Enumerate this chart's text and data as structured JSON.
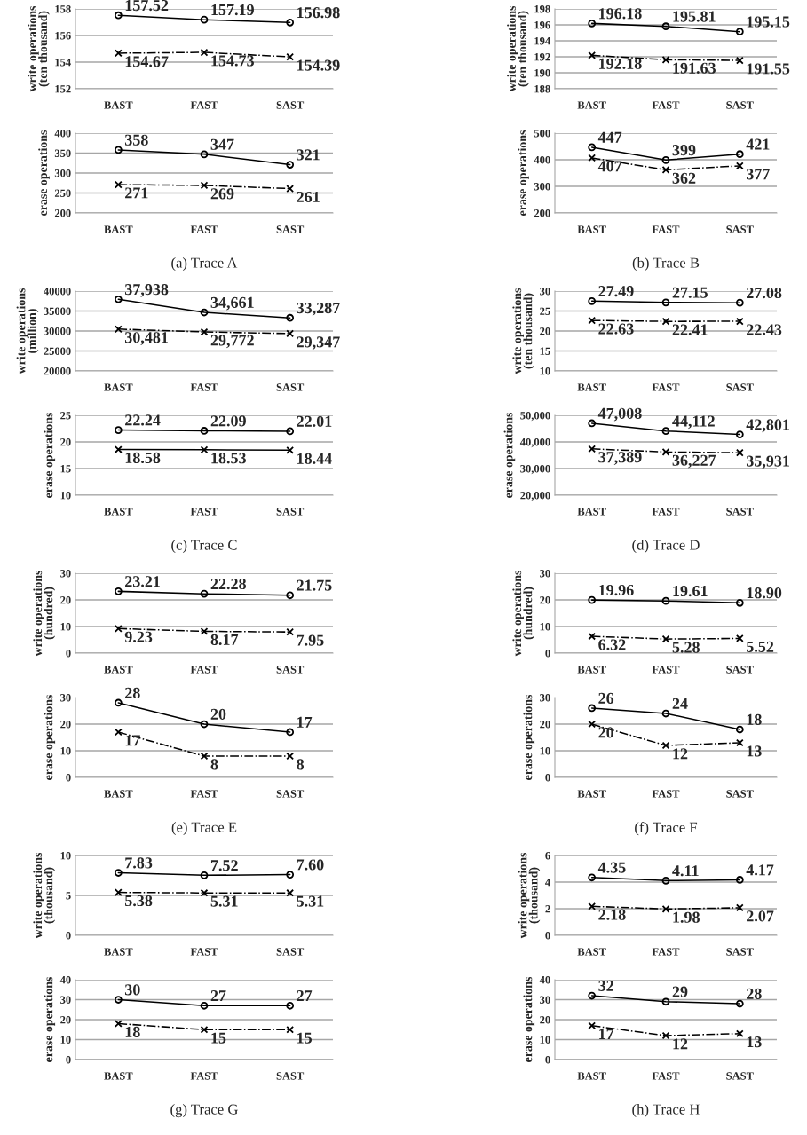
{
  "chart_data": [
    {
      "type": "line",
      "categories": [
        "BAST",
        "FAST",
        "SAST"
      ],
      "ylabel": "write operations\n(ten thousand)",
      "ylim": [
        152,
        158
      ],
      "yticks": [
        152,
        154,
        156,
        158
      ],
      "grid": "y",
      "series": [
        {
          "color": "#000000",
          "marker": "circle",
          "line_style": "solid",
          "values": [
            157.52,
            157.19,
            156.98
          ],
          "value_labels": [
            "157.52",
            "157.19",
            "156.98"
          ]
        },
        {
          "color": "#000000",
          "marker": "cross",
          "line_style": "dashdot",
          "values": [
            154.67,
            154.73,
            154.39
          ],
          "value_labels": [
            "154.67",
            "154.73",
            "154.39"
          ]
        }
      ]
    },
    {
      "type": "line",
      "categories": [
        "BAST",
        "FAST",
        "SAST"
      ],
      "ylabel": "erase operations",
      "ylim": [
        200,
        400
      ],
      "yticks": [
        200,
        250,
        300,
        350,
        400
      ],
      "grid": "y",
      "annotations": [
        "(a) Trace A"
      ],
      "series": [
        {
          "color": "#000000",
          "marker": "circle",
          "line_style": "solid",
          "values": [
            358,
            347,
            321
          ],
          "value_labels": [
            "358",
            "347",
            "321"
          ]
        },
        {
          "color": "#000000",
          "marker": "cross",
          "line_style": "dashdot",
          "values": [
            271,
            269,
            261
          ],
          "value_labels": [
            "271",
            "269",
            "261"
          ]
        }
      ]
    },
    {
      "type": "line",
      "categories": [
        "BAST",
        "FAST",
        "SAST"
      ],
      "ylabel": "write operations\n(ten thousand)",
      "ylim": [
        188,
        198
      ],
      "yticks": [
        188,
        190,
        192,
        194,
        196,
        198
      ],
      "grid": "y",
      "series": [
        {
          "color": "#000000",
          "marker": "circle",
          "line_style": "solid",
          "values": [
            196.18,
            195.81,
            195.15
          ],
          "value_labels": [
            "196.18",
            "195.81",
            "195.15"
          ]
        },
        {
          "color": "#000000",
          "marker": "cross",
          "line_style": "dashdot",
          "values": [
            192.18,
            191.63,
            191.55
          ],
          "value_labels": [
            "192.18",
            "191.63",
            "191.55"
          ]
        }
      ]
    },
    {
      "type": "line",
      "categories": [
        "BAST",
        "FAST",
        "SAST"
      ],
      "ylabel": "erase operations",
      "ylim": [
        200,
        500
      ],
      "yticks": [
        200,
        300,
        400,
        500
      ],
      "grid": "y",
      "annotations": [
        "(b) Trace B"
      ],
      "series": [
        {
          "color": "#000000",
          "marker": "circle",
          "line_style": "solid",
          "values": [
            447,
            399,
            421
          ],
          "value_labels": [
            "447",
            "399",
            "421"
          ]
        },
        {
          "color": "#000000",
          "marker": "cross",
          "line_style": "dashdot",
          "values": [
            407,
            362,
            377
          ],
          "value_labels": [
            "407",
            "362",
            "377"
          ]
        }
      ]
    },
    {
      "type": "line",
      "categories": [
        "BAST",
        "FAST",
        "SAST"
      ],
      "ylabel": "write operations\n(million)",
      "ylim": [
        20000,
        40000
      ],
      "yticks": [
        20000,
        25000,
        30000,
        35000,
        40000
      ],
      "grid": "y",
      "series": [
        {
          "color": "#000000",
          "marker": "circle",
          "line_style": "solid",
          "values": [
            37938,
            34661,
            33287
          ],
          "value_labels": [
            "37,938",
            "34,661",
            "33,287"
          ]
        },
        {
          "color": "#000000",
          "marker": "cross",
          "line_style": "dashdot",
          "values": [
            30481,
            29772,
            29347
          ],
          "value_labels": [
            "30,481",
            "29,772",
            "29,347"
          ]
        }
      ]
    },
    {
      "type": "line",
      "categories": [
        "BAST",
        "FAST",
        "SAST"
      ],
      "ylabel": "erase operations",
      "ylim": [
        10,
        25
      ],
      "yticks": [
        10,
        15,
        20,
        25
      ],
      "grid": "y",
      "annotations": [
        "(c) Trace C"
      ],
      "series": [
        {
          "color": "#000000",
          "marker": "circle",
          "line_style": "solid",
          "values": [
            22.24,
            22.09,
            22.01
          ],
          "value_labels": [
            "22.24",
            "22.09",
            "22.01"
          ]
        },
        {
          "color": "#000000",
          "marker": "cross",
          "line_style": "solid",
          "values": [
            18.58,
            18.53,
            18.44
          ],
          "value_labels": [
            "18.58",
            "18.53",
            "18.44"
          ]
        }
      ]
    },
    {
      "type": "line",
      "categories": [
        "BAST",
        "FAST",
        "SAST"
      ],
      "ylabel": "write operations\n(ten thousand)",
      "ylim": [
        10,
        30
      ],
      "yticks": [
        10,
        15,
        20,
        25,
        30
      ],
      "grid": "y",
      "series": [
        {
          "color": "#000000",
          "marker": "circle",
          "line_style": "solid",
          "values": [
            27.49,
            27.15,
            27.08
          ],
          "value_labels": [
            "27.49",
            "27.15",
            "27.08"
          ]
        },
        {
          "color": "#000000",
          "marker": "cross",
          "line_style": "dashdot",
          "values": [
            22.63,
            22.41,
            22.43
          ],
          "value_labels": [
            "22.63",
            "22.41",
            "22.43"
          ]
        }
      ]
    },
    {
      "type": "line",
      "categories": [
        "BAST",
        "FAST",
        "SAST"
      ],
      "ylabel": "erase operations",
      "ylim": [
        20000,
        50000
      ],
      "yticks": [
        {
          "value": 20000,
          "label": "20,000"
        },
        {
          "value": 30000,
          "label": "30,000"
        },
        {
          "value": 40000,
          "label": "40,000"
        },
        {
          "value": 50000,
          "label": "50,000"
        }
      ],
      "grid": "y",
      "annotations": [
        "(d) Trace D"
      ],
      "series": [
        {
          "color": "#000000",
          "marker": "circle",
          "line_style": "solid",
          "values": [
            47008,
            44112,
            42801
          ],
          "value_labels": [
            "47,008",
            "44,112",
            "42,801"
          ]
        },
        {
          "color": "#000000",
          "marker": "cross",
          "line_style": "dashdot",
          "values": [
            37389,
            36227,
            35931
          ],
          "value_labels": [
            "37,389",
            "36,227",
            "35,931"
          ]
        }
      ]
    },
    {
      "type": "line",
      "categories": [
        "BAST",
        "FAST",
        "SAST"
      ],
      "ylabel": "write operations\n(hundred)",
      "ylim": [
        0,
        30
      ],
      "yticks": [
        0,
        10,
        20,
        30
      ],
      "grid": "y",
      "series": [
        {
          "color": "#000000",
          "marker": "circle",
          "line_style": "solid",
          "values": [
            23.21,
            22.28,
            21.75
          ],
          "value_labels": [
            "23.21",
            "22.28",
            "21.75"
          ]
        },
        {
          "color": "#000000",
          "marker": "cross",
          "line_style": "dashdot",
          "values": [
            9.23,
            8.17,
            7.95
          ],
          "value_labels": [
            "9.23",
            "8.17",
            "7.95"
          ]
        }
      ]
    },
    {
      "type": "line",
      "categories": [
        "BAST",
        "FAST",
        "SAST"
      ],
      "ylabel": "erase operations",
      "ylim": [
        0,
        30
      ],
      "yticks": [
        0,
        10,
        20,
        30
      ],
      "grid": "y",
      "annotations": [
        "(e) Trace E"
      ],
      "series": [
        {
          "color": "#000000",
          "marker": "circle",
          "line_style": "solid",
          "values": [
            28,
            20,
            17
          ],
          "value_labels": [
            "28",
            "20",
            "17"
          ]
        },
        {
          "color": "#000000",
          "marker": "cross",
          "line_style": "dashdot",
          "values": [
            17,
            8,
            8
          ],
          "value_labels": [
            "17",
            "8",
            "8"
          ]
        }
      ]
    },
    {
      "type": "line",
      "categories": [
        "BAST",
        "FAST",
        "SAST"
      ],
      "ylabel": "write operations\n(hundred)",
      "ylim": [
        0,
        30
      ],
      "yticks": [
        0,
        10,
        20,
        30
      ],
      "grid": "y",
      "series": [
        {
          "color": "#000000",
          "marker": "circle",
          "line_style": "solid",
          "values": [
            19.96,
            19.61,
            18.9
          ],
          "value_labels": [
            "19.96",
            "19.61",
            "18.90"
          ]
        },
        {
          "color": "#000000",
          "marker": "cross",
          "line_style": "dashdot",
          "values": [
            6.32,
            5.28,
            5.52
          ],
          "value_labels": [
            "6.32",
            "5.28",
            "5.52"
          ]
        }
      ]
    },
    {
      "type": "line",
      "categories": [
        "BAST",
        "FAST",
        "SAST"
      ],
      "ylabel": "erase operations",
      "ylim": [
        0,
        30
      ],
      "yticks": [
        0,
        10,
        20,
        30
      ],
      "grid": "y",
      "annotations": [
        "(f) Trace F"
      ],
      "series": [
        {
          "color": "#000000",
          "marker": "circle",
          "line_style": "solid",
          "values": [
            26,
            24,
            18
          ],
          "value_labels": [
            "26",
            "24",
            "18"
          ]
        },
        {
          "color": "#000000",
          "marker": "cross",
          "line_style": "dashdot",
          "values": [
            20,
            12,
            13
          ],
          "value_labels": [
            "20",
            "12",
            "13"
          ]
        }
      ]
    },
    {
      "type": "line",
      "categories": [
        "BAST",
        "FAST",
        "SAST"
      ],
      "ylabel": "write operations\n(thousand)",
      "ylim": [
        0,
        10
      ],
      "yticks": [
        0,
        5,
        10
      ],
      "grid": "y",
      "series": [
        {
          "color": "#000000",
          "marker": "circle",
          "line_style": "solid",
          "values": [
            7.83,
            7.52,
            7.6
          ],
          "value_labels": [
            "7.83",
            "7.52",
            "7.60"
          ]
        },
        {
          "color": "#000000",
          "marker": "cross",
          "line_style": "dashdot",
          "values": [
            5.38,
            5.31,
            5.31
          ],
          "value_labels": [
            "5.38",
            "5.31",
            "5.31"
          ]
        }
      ]
    },
    {
      "type": "line",
      "categories": [
        "BAST",
        "FAST",
        "SAST"
      ],
      "ylabel": "erase operations",
      "ylim": [
        0,
        40
      ],
      "yticks": [
        0,
        10,
        20,
        30,
        40
      ],
      "grid": "y",
      "annotations": [
        "(g) Trace G"
      ],
      "series": [
        {
          "color": "#000000",
          "marker": "circle",
          "line_style": "solid",
          "values": [
            30,
            27,
            27
          ],
          "value_labels": [
            "30",
            "27",
            "27"
          ]
        },
        {
          "color": "#000000",
          "marker": "cross",
          "line_style": "dashdot",
          "values": [
            18,
            15,
            15
          ],
          "value_labels": [
            "18",
            "15",
            "15"
          ]
        }
      ]
    },
    {
      "type": "line",
      "categories": [
        "BAST",
        "FAST",
        "SAST"
      ],
      "ylabel": "write operations\n(thousand)",
      "ylim": [
        0,
        6
      ],
      "yticks": [
        0,
        2,
        4,
        6
      ],
      "grid": "y",
      "series": [
        {
          "color": "#000000",
          "marker": "circle",
          "line_style": "solid",
          "values": [
            4.35,
            4.11,
            4.17
          ],
          "value_labels": [
            "4.35",
            "4.11",
            "4.17"
          ]
        },
        {
          "color": "#000000",
          "marker": "cross",
          "line_style": "dashdot",
          "values": [
            2.18,
            1.98,
            2.07
          ],
          "value_labels": [
            "2.18",
            "1.98",
            "2.07"
          ]
        }
      ]
    },
    {
      "type": "line",
      "categories": [
        "BAST",
        "FAST",
        "SAST"
      ],
      "ylabel": "erase operations",
      "ylim": [
        0,
        40
      ],
      "yticks": [
        0,
        10,
        20,
        30,
        40
      ],
      "grid": "y",
      "annotations": [
        "(h) Trace H"
      ],
      "series": [
        {
          "color": "#000000",
          "marker": "circle",
          "line_style": "solid",
          "values": [
            32,
            29,
            28
          ],
          "value_labels": [
            "32",
            "29",
            "28"
          ]
        },
        {
          "color": "#000000",
          "marker": "cross",
          "line_style": "dashdot",
          "values": [
            17,
            12,
            13
          ],
          "value_labels": [
            "17",
            "12",
            "13"
          ]
        }
      ]
    }
  ]
}
